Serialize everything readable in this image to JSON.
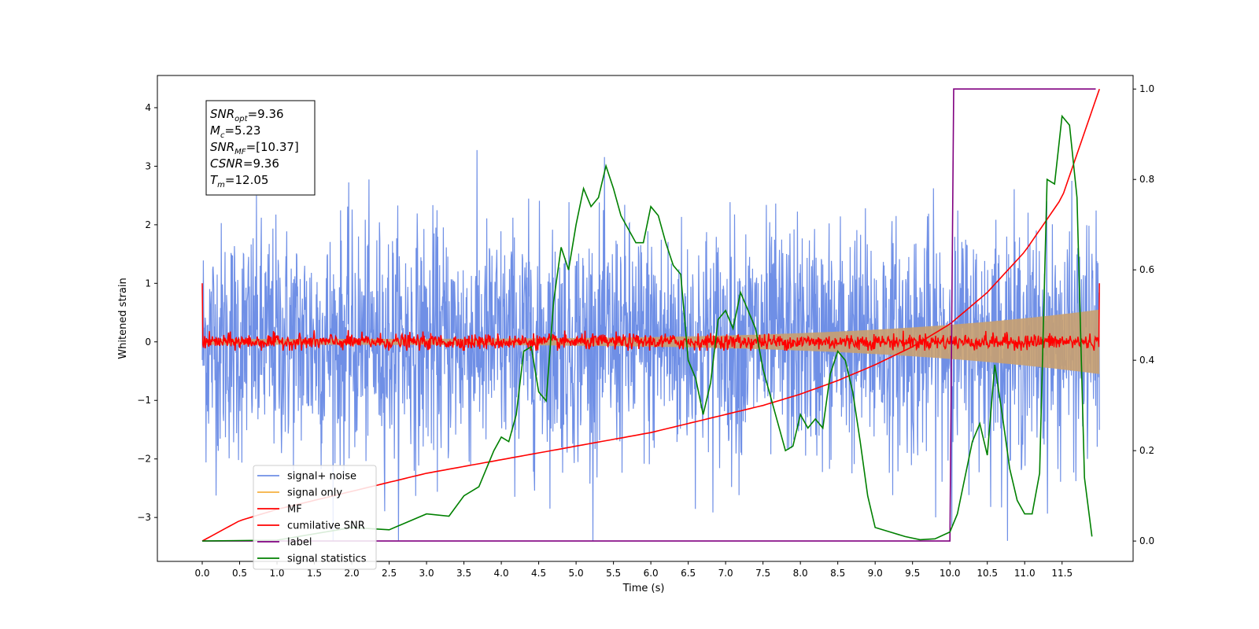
{
  "chart_data": {
    "type": "line",
    "title": "",
    "xlabel": "Time (s)",
    "ylabel": "Whitened strain",
    "xlim": [
      -0.6,
      12.45
    ],
    "ylim": [
      -3.75,
      4.55
    ],
    "y2lim": [
      -0.045,
      1.03
    ],
    "xticks": [
      0.0,
      0.5,
      1.0,
      1.5,
      2.0,
      2.5,
      3.0,
      3.5,
      4.0,
      4.5,
      5.0,
      5.5,
      6.0,
      6.5,
      7.0,
      7.5,
      8.0,
      8.5,
      9.0,
      9.5,
      10.0,
      10.5,
      11.0,
      11.5
    ],
    "xtick_labels": [
      "0.0",
      "0.5",
      "1.0",
      "1.5",
      "2.0",
      "2.5",
      "3.0",
      "3.5",
      "4.0",
      "4.5",
      "5.0",
      "5.5",
      "6.0",
      "6.5",
      "7.0",
      "7.5",
      "8.0",
      "8.5",
      "9.0",
      "9.5",
      "10.0",
      "10.5",
      "11.0",
      "11.5"
    ],
    "yticks": [
      -3,
      -2,
      -1,
      0,
      1,
      2,
      3,
      4
    ],
    "ytick_labels": [
      "−3",
      "−2",
      "−1",
      "0",
      "1",
      "2",
      "3",
      "4"
    ],
    "y2ticks": [
      0.0,
      0.2,
      0.4,
      0.6,
      0.8,
      1.0
    ],
    "y2tick_labels": [
      "0.0",
      "0.2",
      "0.4",
      "0.6",
      "0.8",
      "1.0"
    ],
    "grid": false,
    "legend_position": "lower-left",
    "legend": [
      {
        "label": "signal+ noise",
        "color": "#6f8fe6"
      },
      {
        "label": "signal only",
        "color": "#f5b041"
      },
      {
        "label": "MF",
        "color": "#ff0000"
      },
      {
        "label": "cumilative SNR",
        "color": "#ff0000"
      },
      {
        "label": "label",
        "color": "#800080"
      },
      {
        "label": "signal statistics",
        "color": "#008000"
      }
    ],
    "annotation": {
      "lines": [
        {
          "sym": "SNR",
          "sub": "opt",
          "value": "=9.36"
        },
        {
          "sym": "M",
          "sub": "c",
          "value": "=5.23"
        },
        {
          "sym": "SNR",
          "sub": "MF",
          "value": "=[10.37]"
        },
        {
          "sym": "CSNR",
          "sub": "",
          "value": "=9.36"
        },
        {
          "sym": "T",
          "sub": "m",
          "value": "=12.05"
        }
      ]
    },
    "series": [
      {
        "name": "signal+ noise",
        "axis": "left",
        "color": "#6f8fe6",
        "style": "noise",
        "x_range": [
          0.0,
          12.0
        ],
        "amplitude_sigma": 1.0,
        "y_extent": [
          -3.4,
          4.2
        ]
      },
      {
        "name": "signal only",
        "axis": "left",
        "color": "#c8a070",
        "style": "chirp-envelope",
        "x_range": [
          0.0,
          12.0
        ],
        "envelope_start": 0.05,
        "envelope_end": 0.55
      },
      {
        "name": "MF",
        "axis": "left",
        "color": "#ff0000",
        "style": "noise-small",
        "x_range": [
          0.0,
          12.0
        ],
        "start_value": 1.0,
        "end_value": 1.0,
        "band": 0.15
      },
      {
        "name": "cumilative SNR",
        "axis": "right",
        "color": "#ff0000",
        "x": [
          0.0,
          0.5,
          1.0,
          1.5,
          2.0,
          2.5,
          3.0,
          3.5,
          4.0,
          4.5,
          5.0,
          5.5,
          6.0,
          6.5,
          7.0,
          7.5,
          8.0,
          8.5,
          9.0,
          9.5,
          10.0,
          10.5,
          11.0,
          11.5,
          12.0
        ],
        "y": [
          0.0,
          0.045,
          0.07,
          0.09,
          0.11,
          0.13,
          0.15,
          0.165,
          0.18,
          0.195,
          0.21,
          0.225,
          0.24,
          0.26,
          0.28,
          0.3,
          0.325,
          0.355,
          0.39,
          0.43,
          0.48,
          0.55,
          0.64,
          0.76,
          1.0
        ]
      },
      {
        "name": "label",
        "axis": "right",
        "color": "#800080",
        "x": [
          0.0,
          10.0,
          10.05,
          11.95
        ],
        "y": [
          0.0,
          0.0,
          1.0,
          1.0
        ]
      },
      {
        "name": "signal statistics",
        "axis": "right",
        "color": "#008000",
        "x": [
          0.0,
          1.0,
          2.0,
          2.5,
          3.0,
          3.3,
          3.5,
          3.7,
          3.9,
          4.0,
          4.1,
          4.2,
          4.3,
          4.4,
          4.5,
          4.6,
          4.7,
          4.8,
          4.9,
          5.0,
          5.1,
          5.2,
          5.3,
          5.4,
          5.5,
          5.6,
          5.7,
          5.8,
          5.9,
          6.0,
          6.1,
          6.2,
          6.3,
          6.4,
          6.5,
          6.6,
          6.7,
          6.8,
          6.9,
          7.0,
          7.1,
          7.2,
          7.3,
          7.4,
          7.5,
          7.6,
          7.7,
          7.8,
          7.9,
          8.0,
          8.1,
          8.2,
          8.3,
          8.4,
          8.5,
          8.6,
          8.7,
          8.8,
          8.9,
          9.0,
          9.2,
          9.4,
          9.6,
          9.8,
          10.0,
          10.1,
          10.2,
          10.3,
          10.4,
          10.5,
          10.6,
          10.7,
          10.8,
          10.9,
          11.0,
          11.1,
          11.2,
          11.3,
          11.4,
          11.5,
          11.6,
          11.7,
          11.8,
          11.9
        ],
        "y": [
          0.0,
          0.002,
          0.03,
          0.025,
          0.06,
          0.055,
          0.1,
          0.12,
          0.2,
          0.23,
          0.22,
          0.28,
          0.42,
          0.43,
          0.33,
          0.31,
          0.53,
          0.65,
          0.6,
          0.7,
          0.78,
          0.74,
          0.76,
          0.83,
          0.78,
          0.72,
          0.69,
          0.66,
          0.66,
          0.74,
          0.72,
          0.66,
          0.61,
          0.59,
          0.4,
          0.36,
          0.28,
          0.35,
          0.49,
          0.51,
          0.47,
          0.55,
          0.51,
          0.47,
          0.38,
          0.32,
          0.26,
          0.2,
          0.21,
          0.28,
          0.25,
          0.27,
          0.25,
          0.37,
          0.42,
          0.4,
          0.33,
          0.22,
          0.1,
          0.03,
          0.02,
          0.01,
          0.003,
          0.005,
          0.02,
          0.06,
          0.14,
          0.22,
          0.26,
          0.19,
          0.39,
          0.28,
          0.16,
          0.09,
          0.06,
          0.06,
          0.15,
          0.8,
          0.79,
          0.94,
          0.92,
          0.76,
          0.14,
          0.01
        ]
      }
    ]
  }
}
